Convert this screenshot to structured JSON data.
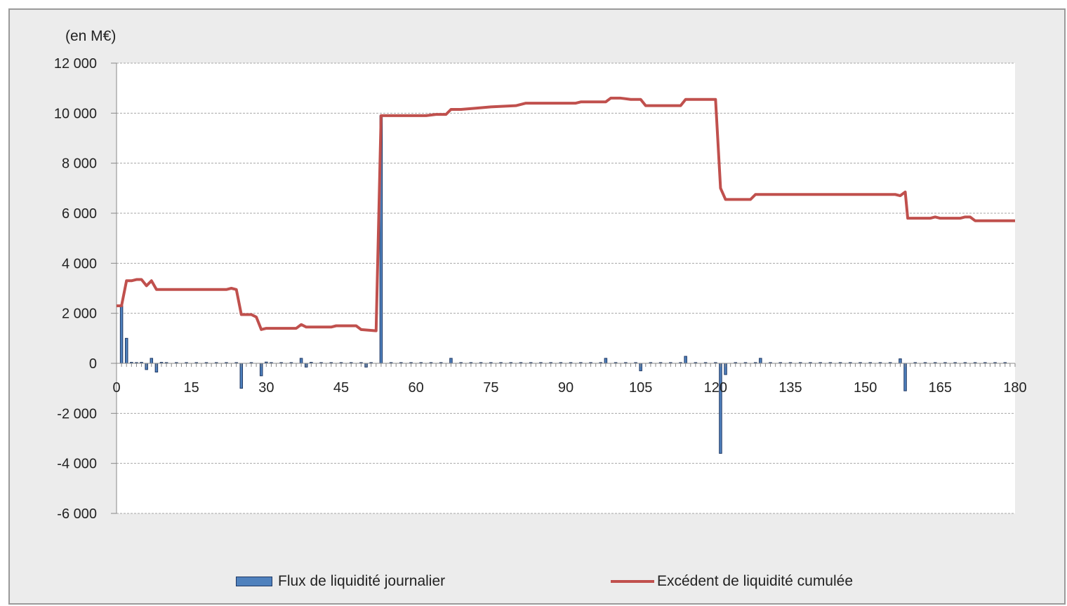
{
  "chart_data": {
    "type": "bar+line",
    "unit_label": "(en M€)",
    "x_ticks": [
      "0",
      "15",
      "30",
      "45",
      "60",
      "75",
      "90",
      "105",
      "120",
      "135",
      "150",
      "165",
      "180"
    ],
    "y_ticks": [
      "12 000",
      "10 000",
      "8 000",
      "6 000",
      "4 000",
      "2 000",
      "0",
      "-2 000",
      "-4 000",
      "-6 000"
    ],
    "xlim": [
      0,
      180
    ],
    "ylim": [
      -6000,
      12000
    ],
    "grid": "horizontal dashed",
    "legend_position": "bottom",
    "colors": {
      "bars": "#4f81bd",
      "bar_outline": "#1f3864",
      "line": "#c0504d"
    },
    "series": [
      {
        "name": "Flux de liquidité journalier",
        "type": "bar",
        "points": [
          [
            1,
            2300
          ],
          [
            2,
            1000
          ],
          [
            3,
            40
          ],
          [
            4,
            30
          ],
          [
            5,
            40
          ],
          [
            6,
            -250
          ],
          [
            7,
            200
          ],
          [
            8,
            -350
          ],
          [
            9,
            40
          ],
          [
            10,
            30
          ],
          [
            12,
            30
          ],
          [
            14,
            30
          ],
          [
            16,
            30
          ],
          [
            18,
            30
          ],
          [
            20,
            30
          ],
          [
            22,
            30
          ],
          [
            24,
            30
          ],
          [
            25,
            -1000
          ],
          [
            27,
            30
          ],
          [
            29,
            -500
          ],
          [
            30,
            50
          ],
          [
            31,
            30
          ],
          [
            33,
            30
          ],
          [
            35,
            30
          ],
          [
            37,
            200
          ],
          [
            38,
            -150
          ],
          [
            39,
            40
          ],
          [
            41,
            30
          ],
          [
            43,
            30
          ],
          [
            45,
            30
          ],
          [
            47,
            30
          ],
          [
            49,
            30
          ],
          [
            50,
            -150
          ],
          [
            51,
            30
          ],
          [
            53,
            9900
          ],
          [
            55,
            30
          ],
          [
            57,
            30
          ],
          [
            59,
            30
          ],
          [
            61,
            30
          ],
          [
            63,
            30
          ],
          [
            65,
            30
          ],
          [
            67,
            200
          ],
          [
            69,
            30
          ],
          [
            71,
            30
          ],
          [
            73,
            30
          ],
          [
            75,
            30
          ],
          [
            77,
            30
          ],
          [
            79,
            30
          ],
          [
            81,
            30
          ],
          [
            83,
            30
          ],
          [
            85,
            30
          ],
          [
            87,
            30
          ],
          [
            89,
            30
          ],
          [
            91,
            30
          ],
          [
            93,
            30
          ],
          [
            95,
            30
          ],
          [
            97,
            30
          ],
          [
            98,
            200
          ],
          [
            100,
            30
          ],
          [
            102,
            30
          ],
          [
            104,
            30
          ],
          [
            105,
            -300
          ],
          [
            107,
            30
          ],
          [
            109,
            30
          ],
          [
            111,
            30
          ],
          [
            113,
            30
          ],
          [
            114,
            280
          ],
          [
            116,
            30
          ],
          [
            118,
            30
          ],
          [
            120,
            30
          ],
          [
            121,
            -3600
          ],
          [
            122,
            -450
          ],
          [
            124,
            30
          ],
          [
            126,
            30
          ],
          [
            128,
            30
          ],
          [
            129,
            200
          ],
          [
            131,
            30
          ],
          [
            133,
            30
          ],
          [
            135,
            30
          ],
          [
            137,
            30
          ],
          [
            139,
            30
          ],
          [
            141,
            30
          ],
          [
            143,
            30
          ],
          [
            145,
            30
          ],
          [
            147,
            30
          ],
          [
            149,
            30
          ],
          [
            151,
            30
          ],
          [
            153,
            30
          ],
          [
            155,
            30
          ],
          [
            157,
            180
          ],
          [
            158,
            -1100
          ],
          [
            160,
            30
          ],
          [
            162,
            30
          ],
          [
            164,
            30
          ],
          [
            166,
            30
          ],
          [
            168,
            30
          ],
          [
            170,
            30
          ],
          [
            172,
            30
          ],
          [
            174,
            30
          ],
          [
            176,
            30
          ],
          [
            178,
            30
          ]
        ]
      },
      {
        "name": "Excédent de liquidité cumulée",
        "type": "line",
        "points": [
          [
            0,
            2300
          ],
          [
            1,
            2300
          ],
          [
            2,
            3300
          ],
          [
            3,
            3300
          ],
          [
            4,
            3350
          ],
          [
            5,
            3350
          ],
          [
            6,
            3100
          ],
          [
            7,
            3300
          ],
          [
            8,
            2950
          ],
          [
            10,
            2950
          ],
          [
            20,
            2950
          ],
          [
            22,
            2950
          ],
          [
            23,
            3000
          ],
          [
            24,
            2950
          ],
          [
            25,
            1950
          ],
          [
            27,
            1950
          ],
          [
            28,
            1850
          ],
          [
            29,
            1350
          ],
          [
            30,
            1400
          ],
          [
            36,
            1400
          ],
          [
            37,
            1550
          ],
          [
            38,
            1450
          ],
          [
            43,
            1450
          ],
          [
            44,
            1500
          ],
          [
            48,
            1500
          ],
          [
            49,
            1350
          ],
          [
            52,
            1300
          ],
          [
            53,
            9900
          ],
          [
            55,
            9900
          ],
          [
            62,
            9900
          ],
          [
            64,
            9950
          ],
          [
            66,
            9950
          ],
          [
            67,
            10150
          ],
          [
            69,
            10150
          ],
          [
            72,
            10200
          ],
          [
            75,
            10250
          ],
          [
            80,
            10300
          ],
          [
            82,
            10400
          ],
          [
            92,
            10400
          ],
          [
            93,
            10450
          ],
          [
            98,
            10450
          ],
          [
            99,
            10600
          ],
          [
            101,
            10600
          ],
          [
            103,
            10550
          ],
          [
            105,
            10550
          ],
          [
            106,
            10300
          ],
          [
            113,
            10300
          ],
          [
            114,
            10550
          ],
          [
            120,
            10550
          ],
          [
            121,
            7000
          ],
          [
            122,
            6550
          ],
          [
            127,
            6550
          ],
          [
            128,
            6750
          ],
          [
            156,
            6750
          ],
          [
            157,
            6700
          ],
          [
            158,
            6850
          ],
          [
            158.5,
            5800
          ],
          [
            163,
            5800
          ],
          [
            164,
            5850
          ],
          [
            165,
            5800
          ],
          [
            169,
            5800
          ],
          [
            170,
            5850
          ],
          [
            171,
            5850
          ],
          [
            172,
            5700
          ],
          [
            178,
            5700
          ],
          [
            180,
            5700
          ]
        ]
      }
    ]
  }
}
